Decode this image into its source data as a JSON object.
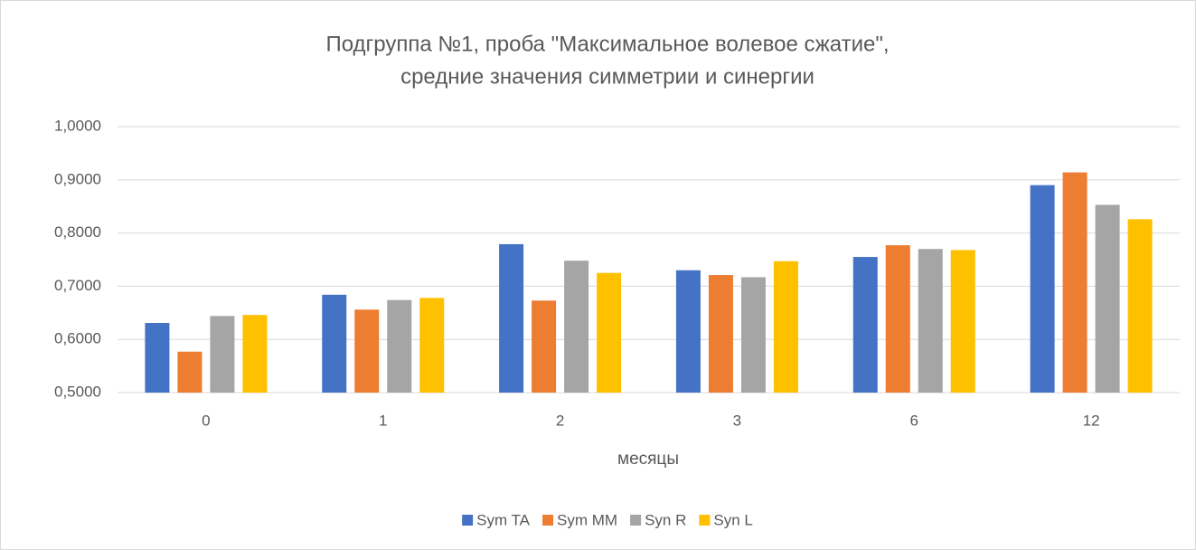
{
  "chart_data": {
    "type": "bar",
    "title": [
      "Подгруппа №1, проба \"Максимальное волевое сжатие\",",
      "средние значения симметрии и синергии"
    ],
    "x_label": "месяцы",
    "categories": [
      "0",
      "1",
      "2",
      "3",
      "6",
      "12"
    ],
    "series": [
      {
        "name": "Sym TA",
        "color": "#4472c4",
        "values": [
          0.631,
          0.684,
          0.779,
          0.73,
          0.755,
          0.89
        ]
      },
      {
        "name": "Sym MM",
        "color": "#ed7d31",
        "values": [
          0.577,
          0.656,
          0.673,
          0.721,
          0.777,
          0.914
        ]
      },
      {
        "name": "Syn R",
        "color": "#a5a5a5",
        "values": [
          0.644,
          0.674,
          0.748,
          0.717,
          0.77,
          0.853
        ]
      },
      {
        "name": "Syn L",
        "color": "#ffc000",
        "values": [
          0.646,
          0.678,
          0.725,
          0.747,
          0.768,
          0.826
        ]
      }
    ],
    "ylim": [
      0.5,
      1.0
    ],
    "yticks": [
      {
        "value": 0.5,
        "label": "0,5000"
      },
      {
        "value": 0.6,
        "label": "0,6000"
      },
      {
        "value": 0.7,
        "label": "0,7000"
      },
      {
        "value": 0.8,
        "label": "0,8000"
      },
      {
        "value": 0.9,
        "label": "0,9000"
      },
      {
        "value": 1.0,
        "label": "1,0000"
      }
    ],
    "grid": true,
    "legend": "bottom"
  }
}
